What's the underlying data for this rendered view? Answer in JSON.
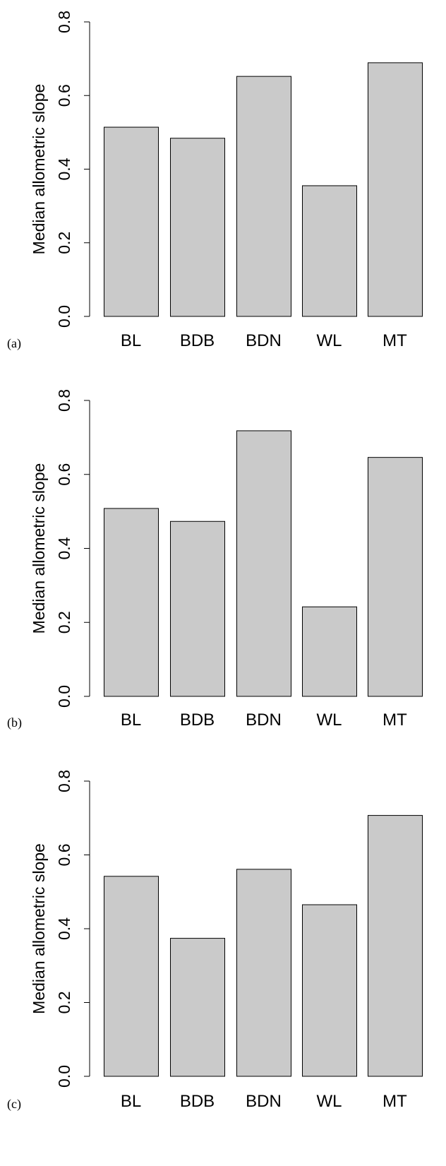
{
  "chart_data": [
    {
      "type": "bar",
      "panel_label": "(a)",
      "categories": [
        "BL",
        "BDB",
        "BDN",
        "WL",
        "MT"
      ],
      "values": [
        0.514,
        0.484,
        0.652,
        0.355,
        0.689
      ],
      "ylabel": "Median allometric slope",
      "ylim": [
        0,
        0.8
      ],
      "yticks": [
        "0.0",
        "0.2",
        "0.4",
        "0.6",
        "0.8"
      ]
    },
    {
      "type": "bar",
      "panel_label": "(b)",
      "categories": [
        "BL",
        "BDB",
        "BDN",
        "WL",
        "MT"
      ],
      "values": [
        0.508,
        0.473,
        0.718,
        0.242,
        0.646
      ],
      "ylabel": "Median allometric slope",
      "ylim": [
        0,
        0.8
      ],
      "yticks": [
        "0.0",
        "0.2",
        "0.4",
        "0.6",
        "0.8"
      ]
    },
    {
      "type": "bar",
      "panel_label": "(c)",
      "categories": [
        "BL",
        "BDB",
        "BDN",
        "WL",
        "MT"
      ],
      "values": [
        0.542,
        0.374,
        0.561,
        0.465,
        0.707
      ],
      "ylabel": "Median allometric slope",
      "ylim": [
        0,
        0.8
      ],
      "yticks": [
        "0.0",
        "0.2",
        "0.4",
        "0.6",
        "0.8"
      ]
    }
  ]
}
